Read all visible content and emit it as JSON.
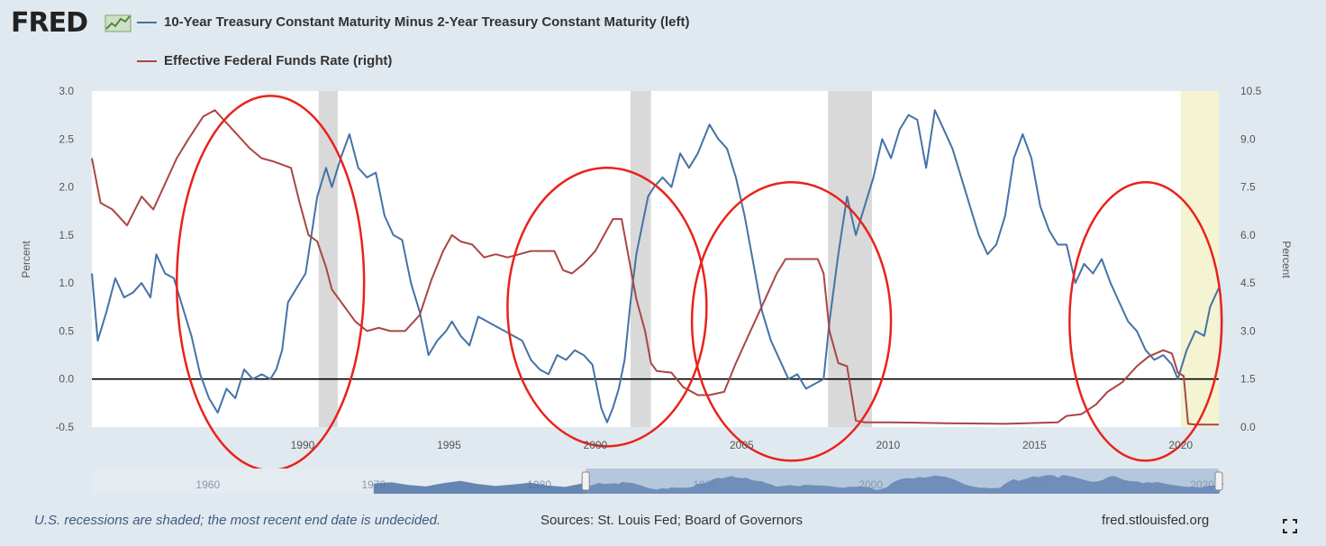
{
  "header": {
    "logo_text": "FRED",
    "series1_label": "10-Year Treasury Constant Maturity Minus 2-Year Treasury Constant Maturity (left)",
    "series2_label": "Effective Federal Funds Rate (right)"
  },
  "footer": {
    "note": "U.S. recessions are shaded; the most recent end date is undecided.",
    "sources": "Sources: St. Louis Fed; Board of Governors",
    "url": "fred.stlouisfed.org"
  },
  "colors": {
    "spread": "#4572a7",
    "fedfunds": "#aa4643",
    "circle": "#e8231b",
    "recession": "#d9d9d9",
    "shade_recent": "#f4f3d2"
  },
  "chart_data": {
    "type": "line",
    "title": "10-Year Treasury Constant Maturity Minus 2-Year Treasury Constant Maturity vs Effective Federal Funds Rate",
    "xlim": [
      1982.8,
      2021.3
    ],
    "x_ticks": [
      1990,
      1995,
      2000,
      2005,
      2010,
      2015,
      2020
    ],
    "left_axis": {
      "label": "Percent",
      "ylim": [
        -0.5,
        3.0
      ],
      "ticks": [
        "3.0",
        "2.5",
        "2.0",
        "1.5",
        "1.0",
        "0.5",
        "0.0",
        "-0.5"
      ]
    },
    "right_axis": {
      "label": "Percent",
      "ylim": [
        0.0,
        10.5
      ],
      "ticks": [
        "10.5",
        "9.0",
        "7.5",
        "6.0",
        "4.5",
        "3.0",
        "1.5",
        "0.0"
      ]
    },
    "zero_line": 0.0,
    "recessions": [
      [
        1990.55,
        1991.2
      ],
      [
        2001.2,
        2001.9
      ],
      [
        2007.95,
        2009.45
      ],
      [
        2020.0,
        2021.3
      ]
    ],
    "series": [
      {
        "name": "10-Year Treasury Constant Maturity Minus 2-Year Treasury Constant Maturity",
        "axis": "left",
        "x": [
          1982.8,
          1983.0,
          1983.3,
          1983.6,
          1983.9,
          1984.2,
          1984.5,
          1984.8,
          1985.0,
          1985.3,
          1985.6,
          1985.9,
          1986.2,
          1986.5,
          1986.8,
          1987.1,
          1987.4,
          1987.7,
          1988.0,
          1988.3,
          1988.6,
          1988.9,
          1989.1,
          1989.3,
          1989.5,
          1989.7,
          1989.9,
          1990.1,
          1990.3,
          1990.5,
          1990.8,
          1991.0,
          1991.3,
          1991.6,
          1991.9,
          1992.2,
          1992.5,
          1992.8,
          1993.1,
          1993.4,
          1993.7,
          1994.0,
          1994.3,
          1994.6,
          1994.9,
          1995.1,
          1995.4,
          1995.7,
          1996.0,
          1996.3,
          1996.6,
          1996.9,
          1997.2,
          1997.5,
          1997.8,
          1998.1,
          1998.4,
          1998.7,
          1999.0,
          1999.3,
          1999.6,
          1999.9,
          2000.2,
          2000.4,
          2000.6,
          2000.8,
          2001.0,
          2001.2,
          2001.4,
          2001.6,
          2001.8,
          2002.0,
          2002.3,
          2002.6,
          2002.9,
          2003.2,
          2003.5,
          2003.7,
          2003.9,
          2004.2,
          2004.5,
          2004.8,
          2005.1,
          2005.4,
          2005.7,
          2006.0,
          2006.3,
          2006.6,
          2006.9,
          2007.2,
          2007.5,
          2007.8,
          2008.0,
          2008.3,
          2008.6,
          2008.9,
          2009.2,
          2009.5,
          2009.8,
          2010.1,
          2010.4,
          2010.7,
          2011.0,
          2011.3,
          2011.6,
          2011.9,
          2012.2,
          2012.5,
          2012.8,
          2013.1,
          2013.4,
          2013.7,
          2014.0,
          2014.3,
          2014.6,
          2014.9,
          2015.2,
          2015.5,
          2015.8,
          2016.1,
          2016.4,
          2016.7,
          2017.0,
          2017.3,
          2017.6,
          2017.9,
          2018.2,
          2018.5,
          2018.8,
          2019.1,
          2019.4,
          2019.7,
          2019.9,
          2020.2,
          2020.5,
          2020.8,
          2021.0,
          2021.3
        ],
        "y": [
          1.1,
          0.4,
          0.7,
          1.05,
          0.85,
          0.9,
          1.0,
          0.85,
          1.3,
          1.1,
          1.05,
          0.75,
          0.45,
          0.05,
          -0.2,
          -0.35,
          -0.1,
          -0.2,
          0.1,
          0.0,
          0.05,
          0.0,
          0.1,
          0.3,
          0.8,
          0.9,
          1.0,
          1.1,
          1.5,
          1.9,
          2.2,
          2.0,
          2.3,
          2.55,
          2.2,
          2.1,
          2.15,
          1.7,
          1.5,
          1.45,
          1.0,
          0.7,
          0.25,
          0.4,
          0.5,
          0.6,
          0.45,
          0.35,
          0.65,
          0.6,
          0.55,
          0.5,
          0.45,
          0.4,
          0.2,
          0.1,
          0.05,
          0.25,
          0.2,
          0.3,
          0.25,
          0.15,
          -0.3,
          -0.45,
          -0.3,
          -0.1,
          0.2,
          0.8,
          1.3,
          1.6,
          1.9,
          2.0,
          2.1,
          2.0,
          2.35,
          2.2,
          2.35,
          2.5,
          2.65,
          2.5,
          2.4,
          2.1,
          1.7,
          1.2,
          0.7,
          0.4,
          0.2,
          0.0,
          0.05,
          -0.1,
          -0.05,
          0.0,
          0.6,
          1.3,
          1.9,
          1.5,
          1.8,
          2.1,
          2.5,
          2.3,
          2.6,
          2.75,
          2.7,
          2.2,
          2.8,
          2.6,
          2.4,
          2.1,
          1.8,
          1.5,
          1.3,
          1.4,
          1.7,
          2.3,
          2.55,
          2.3,
          1.8,
          1.55,
          1.4,
          1.4,
          1.0,
          1.2,
          1.1,
          1.25,
          1.0,
          0.8,
          0.6,
          0.5,
          0.3,
          0.2,
          0.25,
          0.15,
          0.0,
          0.3,
          0.5,
          0.45,
          0.75,
          0.95
        ]
      },
      {
        "name": "Effective Federal Funds Rate",
        "axis": "right",
        "x": [
          1982.8,
          1983.1,
          1983.5,
          1984.0,
          1984.5,
          1984.9,
          1985.3,
          1985.7,
          1986.1,
          1986.6,
          1987.0,
          1987.4,
          1987.8,
          1988.2,
          1988.6,
          1989.0,
          1989.3,
          1989.6,
          1989.9,
          1990.2,
          1990.5,
          1990.8,
          1991.0,
          1991.4,
          1991.8,
          1992.2,
          1992.6,
          1993.0,
          1993.5,
          1994.0,
          1994.4,
          1994.8,
          1995.1,
          1995.4,
          1995.8,
          1996.2,
          1996.6,
          1997.0,
          1997.4,
          1997.8,
          1998.2,
          1998.6,
          1998.9,
          1999.2,
          1999.6,
          2000.0,
          2000.3,
          2000.6,
          2000.9,
          2001.1,
          2001.4,
          2001.7,
          2001.9,
          2002.1,
          2002.6,
          2003.0,
          2003.5,
          2003.9,
          2004.4,
          2004.8,
          2005.3,
          2005.8,
          2006.2,
          2006.5,
          2007.0,
          2007.6,
          2007.8,
          2008.0,
          2008.3,
          2008.6,
          2008.9,
          2009.2,
          2010.0,
          2012.0,
          2014.0,
          2015.8,
          2016.1,
          2016.6,
          2017.1,
          2017.5,
          2018.0,
          2018.5,
          2018.9,
          2019.4,
          2019.7,
          2019.9,
          2020.1,
          2020.25,
          2020.5,
          2021.0,
          2021.3
        ],
        "y": [
          8.4,
          7.0,
          6.8,
          6.3,
          7.2,
          6.8,
          7.6,
          8.4,
          9.0,
          9.7,
          9.9,
          9.5,
          9.1,
          8.7,
          8.4,
          8.3,
          8.2,
          8.1,
          7.0,
          6.0,
          5.8,
          5.0,
          4.3,
          3.8,
          3.3,
          3.0,
          3.1,
          3.0,
          3.0,
          3.5,
          4.6,
          5.5,
          6.0,
          5.8,
          5.7,
          5.3,
          5.4,
          5.3,
          5.4,
          5.5,
          5.5,
          5.5,
          4.9,
          4.8,
          5.1,
          5.5,
          6.0,
          6.5,
          6.5,
          5.5,
          4.0,
          3.0,
          2.0,
          1.75,
          1.7,
          1.25,
          1.0,
          1.0,
          1.1,
          2.0,
          3.0,
          4.0,
          4.8,
          5.25,
          5.25,
          5.25,
          4.8,
          3.0,
          2.0,
          1.9,
          0.2,
          0.15,
          0.15,
          0.12,
          0.1,
          0.15,
          0.35,
          0.4,
          0.7,
          1.1,
          1.4,
          1.9,
          2.2,
          2.4,
          2.3,
          1.7,
          1.6,
          0.1,
          0.08,
          0.08,
          0.08
        ]
      }
    ],
    "annotations": [
      {
        "type": "ellipse",
        "cx": 1988.9,
        "cy": 1.0,
        "rx_years": 3.2,
        "ry": 1.95
      },
      {
        "type": "ellipse",
        "cx": 2000.4,
        "cy": 0.75,
        "rx_years": 3.4,
        "ry": 1.45
      },
      {
        "type": "ellipse",
        "cx": 2006.7,
        "cy": 0.6,
        "rx_years": 3.4,
        "ry": 1.45
      },
      {
        "type": "ellipse",
        "cx": 2018.8,
        "cy": 0.6,
        "rx_years": 2.6,
        "ry": 1.45
      }
    ],
    "navigator": {
      "ticks": [
        {
          "value": 1960,
          "label": "1960"
        },
        {
          "value": 1970,
          "label": "1970"
        },
        {
          "value": 1980,
          "label": "1980"
        },
        {
          "value": 1990,
          "label": "1990"
        },
        {
          "value": 2000,
          "label": "2000"
        },
        {
          "value": 2010,
          "label": "2010"
        },
        {
          "value": 2020,
          "label": "2020"
        }
      ],
      "range": [
        1953,
        2021
      ],
      "selection": [
        1982.8,
        2021.3
      ]
    }
  }
}
